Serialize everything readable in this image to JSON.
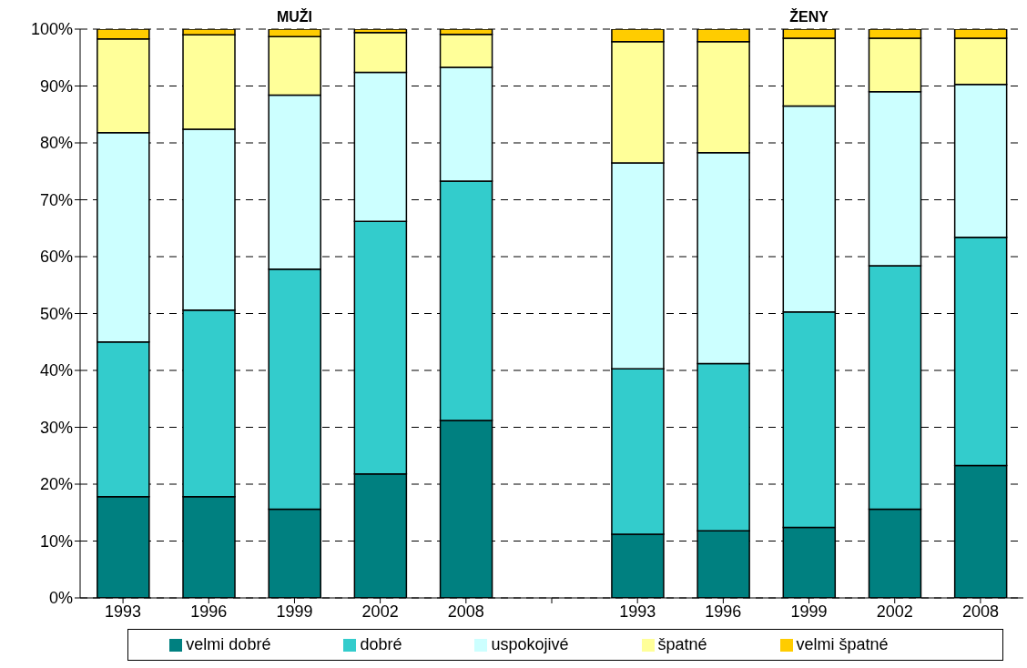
{
  "chart_data": {
    "type": "bar",
    "stacked": true,
    "annotations": [
      "MUŽI",
      "ŽENY"
    ],
    "categories": [
      "1993",
      "1996",
      "1999",
      "2002",
      "2008",
      null,
      "1993",
      "1996",
      "1999",
      "2002",
      "2008"
    ],
    "series": [
      {
        "name": "velmi dobré",
        "color": "#008080",
        "values": [
          17.8,
          17.8,
          15.6,
          21.8,
          31.2,
          null,
          11.2,
          11.8,
          12.4,
          15.6,
          23.3
        ]
      },
      {
        "name": "dobré",
        "color": "#33cccc",
        "values": [
          27.2,
          32.8,
          42.2,
          44.4,
          42.1,
          null,
          29.1,
          29.4,
          37.9,
          42.8,
          40.1
        ]
      },
      {
        "name": "uspokojivé",
        "color": "#ccffff",
        "values": [
          36.8,
          31.8,
          30.6,
          26.2,
          20.0,
          null,
          36.2,
          37.1,
          36.2,
          30.6,
          26.9
        ]
      },
      {
        "name": "špatné",
        "color": "#ffff99",
        "values": [
          16.5,
          16.6,
          10.3,
          7.0,
          5.8,
          null,
          21.3,
          19.5,
          11.9,
          9.4,
          8.1
        ]
      },
      {
        "name": "velmi špatné",
        "color": "#ffcc00",
        "values": [
          1.7,
          1.0,
          1.3,
          0.6,
          0.9,
          null,
          2.2,
          2.2,
          1.6,
          1.6,
          1.6
        ]
      }
    ],
    "ylim": [
      0,
      100
    ],
    "yticks": [
      {
        "value": 0,
        "label": "0%"
      },
      {
        "value": 10,
        "label": "10%"
      },
      {
        "value": 20,
        "label": "20%"
      },
      {
        "value": 30,
        "label": "30%"
      },
      {
        "value": 40,
        "label": "40%"
      },
      {
        "value": 50,
        "label": "50%"
      },
      {
        "value": 60,
        "label": "60%"
      },
      {
        "value": 70,
        "label": "70%"
      },
      {
        "value": 80,
        "label": "80%"
      },
      {
        "value": 90,
        "label": "90%"
      },
      {
        "value": 100,
        "label": "100%"
      }
    ],
    "grid": "y",
    "legend": "bottom"
  }
}
